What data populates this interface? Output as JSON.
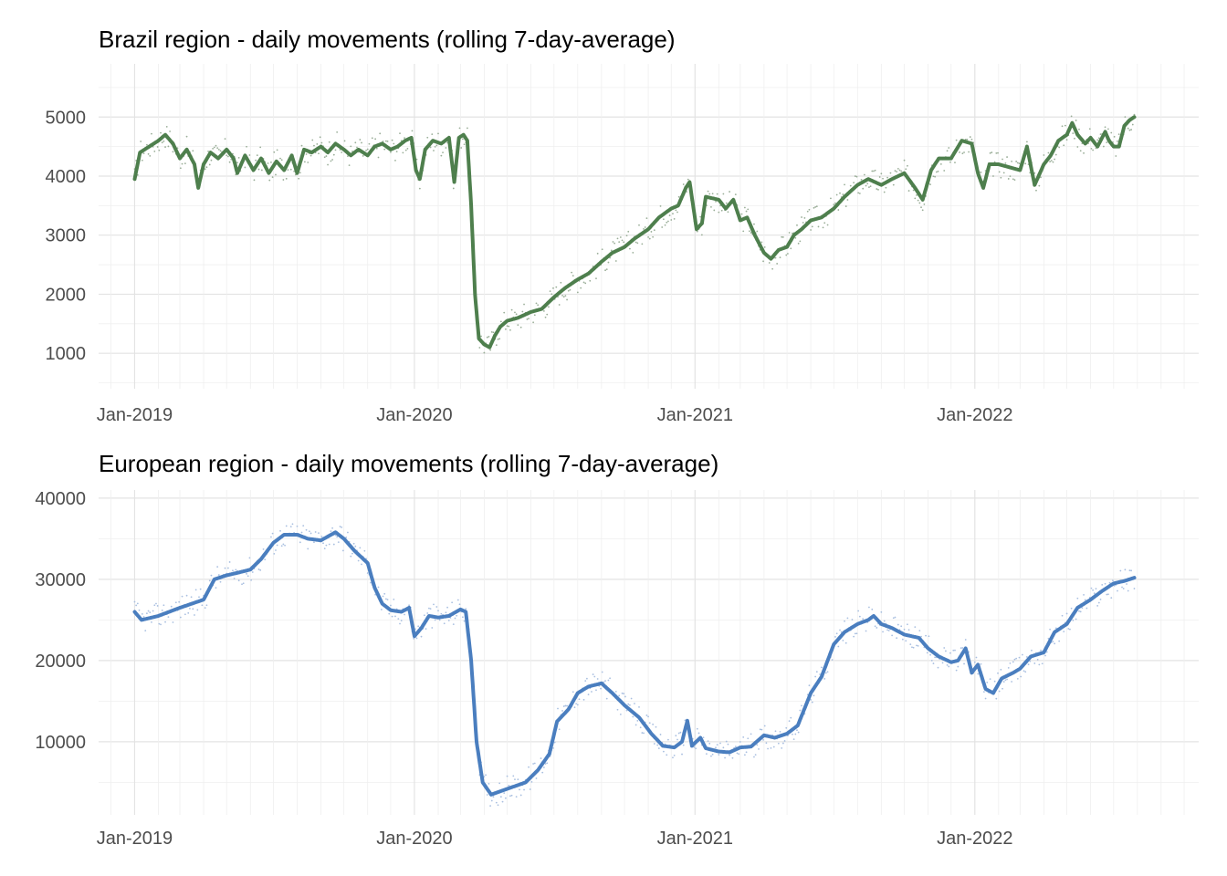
{
  "chart_data": [
    {
      "type": "line",
      "title": "Brazil region - daily movements (rolling 7-day-average)",
      "xlabel": "",
      "ylabel": "",
      "x_ticks": [
        "Jan-2019",
        "Jan-2020",
        "Jan-2021",
        "Jan-2022"
      ],
      "y_ticks": [
        1000,
        2000,
        3000,
        4000,
        5000
      ],
      "xlim": [
        "2018-11-15",
        "2022-10-20"
      ],
      "ylim": [
        400,
        5900
      ],
      "grid": true,
      "line_color": "#4e7f4d",
      "point_color": "#9aae98",
      "series": [
        {
          "points": [
            [
              "2019-01-01",
              3950
            ],
            [
              "2019-01-08",
              4400
            ],
            [
              "2019-01-20",
              4500
            ],
            [
              "2019-02-01",
              4600
            ],
            [
              "2019-02-10",
              4700
            ],
            [
              "2019-02-20",
              4550
            ],
            [
              "2019-03-01",
              4300
            ],
            [
              "2019-03-10",
              4450
            ],
            [
              "2019-03-20",
              4200
            ],
            [
              "2019-03-25",
              3800
            ],
            [
              "2019-04-01",
              4200
            ],
            [
              "2019-04-10",
              4400
            ],
            [
              "2019-04-20",
              4300
            ],
            [
              "2019-05-01",
              4450
            ],
            [
              "2019-05-10",
              4300
            ],
            [
              "2019-05-15",
              4050
            ],
            [
              "2019-05-25",
              4350
            ],
            [
              "2019-06-05",
              4100
            ],
            [
              "2019-06-15",
              4300
            ],
            [
              "2019-06-25",
              4050
            ],
            [
              "2019-07-05",
              4250
            ],
            [
              "2019-07-15",
              4100
            ],
            [
              "2019-07-25",
              4350
            ],
            [
              "2019-08-01",
              4050
            ],
            [
              "2019-08-10",
              4450
            ],
            [
              "2019-08-20",
              4400
            ],
            [
              "2019-09-01",
              4500
            ],
            [
              "2019-09-10",
              4400
            ],
            [
              "2019-09-20",
              4550
            ],
            [
              "2019-10-01",
              4450
            ],
            [
              "2019-10-10",
              4350
            ],
            [
              "2019-10-20",
              4450
            ],
            [
              "2019-11-01",
              4350
            ],
            [
              "2019-11-10",
              4500
            ],
            [
              "2019-11-20",
              4550
            ],
            [
              "2019-12-01",
              4450
            ],
            [
              "2019-12-10",
              4500
            ],
            [
              "2019-12-20",
              4600
            ],
            [
              "2019-12-28",
              4650
            ],
            [
              "2020-01-03",
              4100
            ],
            [
              "2020-01-08",
              3950
            ],
            [
              "2020-01-15",
              4450
            ],
            [
              "2020-01-25",
              4600
            ],
            [
              "2020-02-05",
              4550
            ],
            [
              "2020-02-15",
              4650
            ],
            [
              "2020-02-22",
              3900
            ],
            [
              "2020-02-28",
              4650
            ],
            [
              "2020-03-05",
              4700
            ],
            [
              "2020-03-10",
              4600
            ],
            [
              "2020-03-15",
              3500
            ],
            [
              "2020-03-20",
              2000
            ],
            [
              "2020-03-25",
              1250
            ],
            [
              "2020-04-01",
              1150
            ],
            [
              "2020-04-08",
              1100
            ],
            [
              "2020-04-15",
              1300
            ],
            [
              "2020-04-22",
              1450
            ],
            [
              "2020-05-01",
              1550
            ],
            [
              "2020-05-15",
              1600
            ],
            [
              "2020-06-01",
              1700
            ],
            [
              "2020-06-15",
              1750
            ],
            [
              "2020-07-01",
              1950
            ],
            [
              "2020-07-15",
              2100
            ],
            [
              "2020-08-01",
              2250
            ],
            [
              "2020-08-15",
              2350
            ],
            [
              "2020-09-01",
              2550
            ],
            [
              "2020-09-15",
              2700
            ],
            [
              "2020-10-01",
              2800
            ],
            [
              "2020-10-15",
              2950
            ],
            [
              "2020-11-01",
              3100
            ],
            [
              "2020-11-15",
              3300
            ],
            [
              "2020-12-01",
              3450
            ],
            [
              "2020-12-10",
              3500
            ],
            [
              "2020-12-20",
              3800
            ],
            [
              "2020-12-25",
              3900
            ],
            [
              "2021-01-03",
              3100
            ],
            [
              "2021-01-10",
              3200
            ],
            [
              "2021-01-15",
              3650
            ],
            [
              "2021-02-01",
              3600
            ],
            [
              "2021-02-10",
              3450
            ],
            [
              "2021-02-20",
              3600
            ],
            [
              "2021-03-01",
              3250
            ],
            [
              "2021-03-10",
              3300
            ],
            [
              "2021-03-20",
              3000
            ],
            [
              "2021-04-01",
              2700
            ],
            [
              "2021-04-10",
              2600
            ],
            [
              "2021-04-20",
              2750
            ],
            [
              "2021-05-01",
              2800
            ],
            [
              "2021-05-10",
              3000
            ],
            [
              "2021-05-20",
              3100
            ],
            [
              "2021-06-01",
              3250
            ],
            [
              "2021-06-15",
              3300
            ],
            [
              "2021-07-01",
              3450
            ],
            [
              "2021-07-15",
              3650
            ],
            [
              "2021-08-01",
              3850
            ],
            [
              "2021-08-15",
              3950
            ],
            [
              "2021-09-01",
              3850
            ],
            [
              "2021-09-15",
              3950
            ],
            [
              "2021-10-01",
              4050
            ],
            [
              "2021-10-15",
              3800
            ],
            [
              "2021-10-25",
              3600
            ],
            [
              "2021-11-05",
              4100
            ],
            [
              "2021-11-15",
              4300
            ],
            [
              "2021-12-01",
              4300
            ],
            [
              "2021-12-15",
              4600
            ],
            [
              "2021-12-28",
              4550
            ],
            [
              "2022-01-05",
              4050
            ],
            [
              "2022-01-12",
              3800
            ],
            [
              "2022-01-20",
              4200
            ],
            [
              "2022-02-01",
              4200
            ],
            [
              "2022-02-15",
              4150
            ],
            [
              "2022-03-01",
              4100
            ],
            [
              "2022-03-10",
              4500
            ],
            [
              "2022-03-20",
              3850
            ],
            [
              "2022-04-01",
              4200
            ],
            [
              "2022-04-10",
              4350
            ],
            [
              "2022-04-20",
              4600
            ],
            [
              "2022-05-01",
              4700
            ],
            [
              "2022-05-08",
              4900
            ],
            [
              "2022-05-15",
              4700
            ],
            [
              "2022-05-25",
              4550
            ],
            [
              "2022-06-01",
              4650
            ],
            [
              "2022-06-10",
              4500
            ],
            [
              "2022-06-20",
              4750
            ],
            [
              "2022-06-25",
              4600
            ],
            [
              "2022-07-01",
              4500
            ],
            [
              "2022-07-08",
              4500
            ],
            [
              "2022-07-15",
              4850
            ],
            [
              "2022-07-22",
              4950
            ],
            [
              "2022-07-28",
              5000
            ]
          ]
        }
      ]
    },
    {
      "type": "line",
      "title": "European region - daily movements (rolling 7-day-average)",
      "xlabel": "",
      "ylabel": "",
      "x_ticks": [
        "Jan-2019",
        "Jan-2020",
        "Jan-2021",
        "Jan-2022"
      ],
      "y_ticks": [
        10000,
        20000,
        30000,
        40000
      ],
      "xlim": [
        "2018-11-15",
        "2022-10-20"
      ],
      "ylim": [
        1000,
        41000
      ],
      "grid": true,
      "line_color": "#4a7ebf",
      "point_color": "#a9bfe0",
      "series": [
        {
          "points": [
            [
              "2019-01-01",
              26000
            ],
            [
              "2019-01-10",
              25000
            ],
            [
              "2019-02-01",
              25500
            ],
            [
              "2019-03-01",
              26500
            ],
            [
              "2019-04-01",
              27500
            ],
            [
              "2019-04-15",
              30000
            ],
            [
              "2019-05-01",
              30500
            ],
            [
              "2019-05-15",
              30800
            ],
            [
              "2019-06-01",
              31200
            ],
            [
              "2019-06-15",
              32500
            ],
            [
              "2019-07-01",
              34500
            ],
            [
              "2019-07-15",
              35500
            ],
            [
              "2019-08-01",
              35500
            ],
            [
              "2019-08-15",
              35000
            ],
            [
              "2019-09-01",
              34800
            ],
            [
              "2019-09-20",
              35800
            ],
            [
              "2019-10-01",
              35000
            ],
            [
              "2019-10-15",
              33500
            ],
            [
              "2019-11-01",
              32000
            ],
            [
              "2019-11-10",
              29000
            ],
            [
              "2019-11-20",
              27000
            ],
            [
              "2019-12-01",
              26200
            ],
            [
              "2019-12-15",
              26000
            ],
            [
              "2019-12-25",
              26500
            ],
            [
              "2020-01-01",
              23000
            ],
            [
              "2020-01-10",
              24000
            ],
            [
              "2020-01-20",
              25500
            ],
            [
              "2020-02-01",
              25300
            ],
            [
              "2020-02-15",
              25500
            ],
            [
              "2020-03-01",
              26300
            ],
            [
              "2020-03-08",
              26000
            ],
            [
              "2020-03-15",
              20000
            ],
            [
              "2020-03-22",
              10000
            ],
            [
              "2020-03-30",
              5000
            ],
            [
              "2020-04-10",
              3500
            ],
            [
              "2020-04-25",
              4000
            ],
            [
              "2020-05-10",
              4500
            ],
            [
              "2020-05-25",
              5000
            ],
            [
              "2020-06-10",
              6500
            ],
            [
              "2020-06-25",
              8500
            ],
            [
              "2020-07-05",
              12500
            ],
            [
              "2020-07-20",
              14000
            ],
            [
              "2020-08-01",
              16000
            ],
            [
              "2020-08-15",
              16800
            ],
            [
              "2020-09-01",
              17200
            ],
            [
              "2020-09-15",
              16000
            ],
            [
              "2020-10-01",
              14500
            ],
            [
              "2020-10-20",
              13000
            ],
            [
              "2020-11-05",
              11000
            ],
            [
              "2020-11-20",
              9500
            ],
            [
              "2020-12-05",
              9300
            ],
            [
              "2020-12-15",
              10000
            ],
            [
              "2020-12-22",
              12600
            ],
            [
              "2020-12-28",
              9500
            ],
            [
              "2021-01-08",
              10500
            ],
            [
              "2021-01-15",
              9200
            ],
            [
              "2021-02-01",
              8800
            ],
            [
              "2021-02-15",
              8700
            ],
            [
              "2021-03-01",
              9300
            ],
            [
              "2021-03-15",
              9400
            ],
            [
              "2021-04-01",
              10800
            ],
            [
              "2021-04-15",
              10500
            ],
            [
              "2021-05-01",
              11000
            ],
            [
              "2021-05-15",
              12000
            ],
            [
              "2021-06-01",
              16000
            ],
            [
              "2021-06-15",
              18000
            ],
            [
              "2021-07-01",
              22000
            ],
            [
              "2021-07-15",
              23500
            ],
            [
              "2021-08-01",
              24500
            ],
            [
              "2021-08-15",
              25000
            ],
            [
              "2021-08-22",
              25500
            ],
            [
              "2021-09-01",
              24500
            ],
            [
              "2021-09-15",
              24000
            ],
            [
              "2021-10-01",
              23200
            ],
            [
              "2021-10-20",
              22800
            ],
            [
              "2021-11-01",
              21500
            ],
            [
              "2021-11-15",
              20500
            ],
            [
              "2021-12-01",
              19800
            ],
            [
              "2021-12-10",
              20000
            ],
            [
              "2021-12-20",
              21500
            ],
            [
              "2021-12-28",
              18500
            ],
            [
              "2022-01-05",
              19500
            ],
            [
              "2022-01-15",
              16500
            ],
            [
              "2022-01-25",
              16000
            ],
            [
              "2022-02-05",
              17800
            ],
            [
              "2022-02-20",
              18500
            ],
            [
              "2022-03-01",
              19000
            ],
            [
              "2022-03-15",
              20500
            ],
            [
              "2022-04-01",
              21000
            ],
            [
              "2022-04-15",
              23500
            ],
            [
              "2022-05-01",
              24500
            ],
            [
              "2022-05-15",
              26500
            ],
            [
              "2022-06-01",
              27500
            ],
            [
              "2022-06-15",
              28500
            ],
            [
              "2022-07-01",
              29500
            ],
            [
              "2022-07-15",
              29800
            ],
            [
              "2022-07-28",
              30200
            ]
          ]
        }
      ]
    }
  ]
}
